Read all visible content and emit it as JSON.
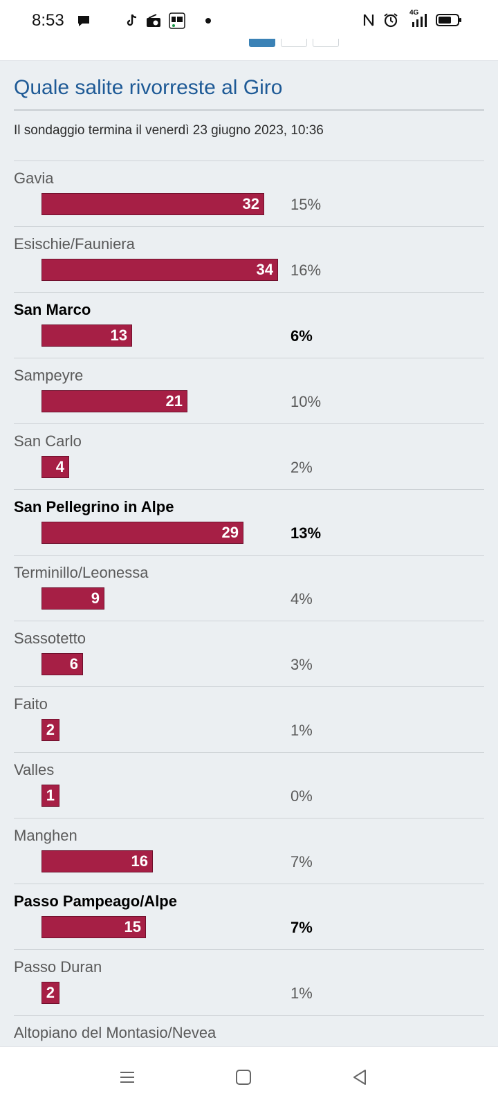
{
  "status": {
    "time": "8:53",
    "network": "4G",
    "icons_left": [
      "chat-icon",
      "tiktok-icon",
      "radio-icon",
      "cm-app-icon",
      "dot-icon"
    ],
    "icons_right": [
      "nfc-icon",
      "alarm-icon",
      "signal-icon",
      "battery-icon"
    ]
  },
  "poll": {
    "title": "Quale salite rivorreste al Giro",
    "end_text": "Il sondaggio termina il venerdì 23 giugno 2023, 10:36",
    "bar_color": "#a61f45",
    "options": [
      {
        "label": "Gavia",
        "votes": 32,
        "percent": "15%",
        "voted": false
      },
      {
        "label": "Esischie/Fauniera",
        "votes": 34,
        "percent": "16%",
        "voted": false
      },
      {
        "label": "San Marco",
        "votes": 13,
        "percent": "6%",
        "voted": true
      },
      {
        "label": "Sampeyre",
        "votes": 21,
        "percent": "10%",
        "voted": false
      },
      {
        "label": "San Carlo",
        "votes": 4,
        "percent": "2%",
        "voted": false
      },
      {
        "label": "San Pellegrino in Alpe",
        "votes": 29,
        "percent": "13%",
        "voted": true
      },
      {
        "label": "Terminillo/Leonessa",
        "votes": 9,
        "percent": "4%",
        "voted": false
      },
      {
        "label": "Sassotetto",
        "votes": 6,
        "percent": "3%",
        "voted": false
      },
      {
        "label": "Faito",
        "votes": 2,
        "percent": "1%",
        "voted": false
      },
      {
        "label": "Valles",
        "votes": 1,
        "percent": "0%",
        "voted": false
      },
      {
        "label": "Manghen",
        "votes": 16,
        "percent": "7%",
        "voted": false
      },
      {
        "label": "Passo Pampeago/Alpe",
        "votes": 15,
        "percent": "7%",
        "voted": true
      },
      {
        "label": "Passo Duran",
        "votes": 2,
        "percent": "1%",
        "voted": false
      },
      {
        "label": "Altopiano del Montasio/Nevea",
        "votes": null,
        "percent": "",
        "voted": false
      }
    ]
  },
  "nav": {
    "buttons": [
      "menu-icon",
      "home-icon",
      "back-icon"
    ]
  }
}
